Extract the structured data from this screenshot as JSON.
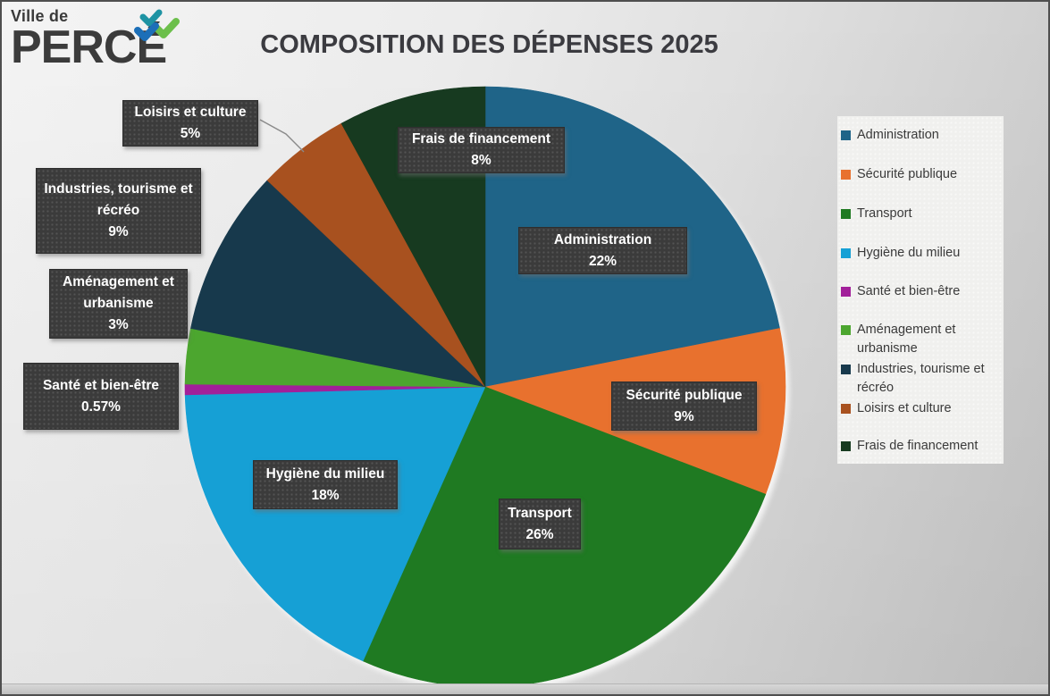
{
  "logo": {
    "small_text": "Ville de",
    "main_text": "PERCÉ",
    "icons": [
      {
        "name": "checkmark-teal",
        "color": "#1e93a3"
      },
      {
        "name": "checkmark-green",
        "color": "#6cbf4b"
      },
      {
        "name": "checkmark-blue",
        "color": "#1c6fb8"
      }
    ]
  },
  "title": "COMPOSITION DES DÉPENSES 2025",
  "chart_data": {
    "type": "pie",
    "title": "COMPOSITION DES DÉPENSES 2025",
    "start_angle_deg": 0,
    "direction": "clockwise",
    "legend_position": "right",
    "slices": [
      {
        "id": "administration",
        "label": "Administration",
        "value_pct": 22,
        "pct_label": "22%",
        "color": "#1f6488"
      },
      {
        "id": "securite-publique",
        "label": "Sécurité publique",
        "value_pct": 9,
        "pct_label": "9%",
        "color": "#e8712e"
      },
      {
        "id": "transport",
        "label": "Transport",
        "value_pct": 26,
        "pct_label": "26%",
        "color": "#1f7a22"
      },
      {
        "id": "hygiene-du-milieu",
        "label": "Hygiène du milieu",
        "value_pct": 18,
        "pct_label": "18%",
        "color": "#16a0d5"
      },
      {
        "id": "sante-et-bien-etre",
        "label": "Santé et bien-être",
        "value_pct": 0.57,
        "pct_label": "0.57%",
        "color": "#a2209a"
      },
      {
        "id": "amenagement-et-urbanisme",
        "label": "Aménagement et urbanisme",
        "value_pct": 3,
        "pct_label": "3%",
        "color": "#4ca62f"
      },
      {
        "id": "industries-tourisme-et-recreo",
        "label": "Industries, tourisme et récréo",
        "value_pct": 9,
        "pct_label": "9%",
        "color": "#17394c"
      },
      {
        "id": "loisirs-et-culture",
        "label": "Loisirs et culture",
        "value_pct": 5,
        "pct_label": "5%",
        "color": "#a8511f"
      },
      {
        "id": "frais-de-financement",
        "label": "Frais de financement",
        "value_pct": 8,
        "pct_label": "8%",
        "color": "#173a20"
      }
    ]
  }
}
